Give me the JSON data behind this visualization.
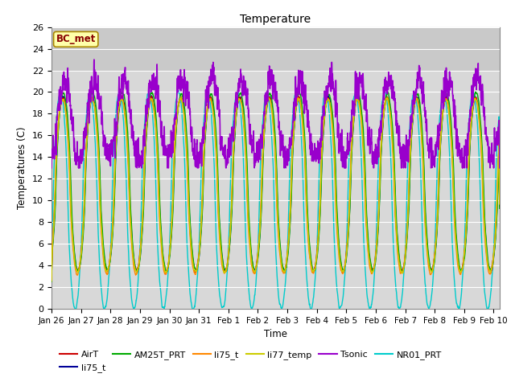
{
  "title": "Temperature",
  "ylabel": "Temperatures (C)",
  "xlabel": "Time",
  "ylim": [
    0,
    26
  ],
  "annotation": "BC_met",
  "background_color": "#ffffff",
  "plot_bg_color": "#d8d8d8",
  "series": {
    "AirT": {
      "color": "#cc0000",
      "lw": 1.0,
      "zorder": 3
    },
    "li75_t": {
      "color": "#000099",
      "lw": 1.0,
      "zorder": 3
    },
    "AM25T_PRT": {
      "color": "#00aa00",
      "lw": 1.0,
      "zorder": 3
    },
    "li75_t_2": {
      "color": "#ff8800",
      "lw": 1.0,
      "zorder": 3
    },
    "li77_temp": {
      "color": "#cccc00",
      "lw": 1.0,
      "zorder": 3
    },
    "Tsonic": {
      "color": "#9900cc",
      "lw": 1.2,
      "zorder": 4
    },
    "NR01_PRT": {
      "color": "#00cccc",
      "lw": 1.0,
      "zorder": 2
    }
  },
  "legend": [
    {
      "label": "AirT",
      "color": "#cc0000",
      "lw": 1.5
    },
    {
      "label": "li75_t",
      "color": "#000099",
      "lw": 1.5
    },
    {
      "label": "AM25T_PRT",
      "color": "#00aa00",
      "lw": 1.5
    },
    {
      "label": "li75_t",
      "color": "#ff8800",
      "lw": 1.5
    },
    {
      "label": "li77_temp",
      "color": "#cccc00",
      "lw": 1.5
    },
    {
      "label": "Tsonic",
      "color": "#9900cc",
      "lw": 1.5
    },
    {
      "label": "NR01_PRT",
      "color": "#00cccc",
      "lw": 1.5
    }
  ],
  "xtick_labels": [
    "Jan 26",
    "Jan 27",
    "Jan 28",
    "Jan 29",
    "Jan 30",
    "Jan 31",
    "Feb 1",
    "Feb 2",
    "Feb 3",
    "Feb 4",
    "Feb 5",
    "Feb 6",
    "Feb 7",
    "Feb 8",
    "Feb 9",
    "Feb 10"
  ],
  "xtick_positions": [
    0,
    1,
    2,
    3,
    4,
    5,
    6,
    7,
    8,
    9,
    10,
    11,
    12,
    13,
    14,
    15
  ],
  "ytick_labels": [
    "0",
    "2",
    "4",
    "6",
    "8",
    "10",
    "12",
    "14",
    "16",
    "18",
    "20",
    "22",
    "24",
    "26"
  ],
  "ytick_positions": [
    0,
    2,
    4,
    6,
    8,
    10,
    12,
    14,
    16,
    18,
    20,
    22,
    24,
    26
  ],
  "shade_ymin": 22,
  "shade_ymax": 26,
  "shade_color": "#c0c0c0",
  "shade_alpha": 0.6
}
